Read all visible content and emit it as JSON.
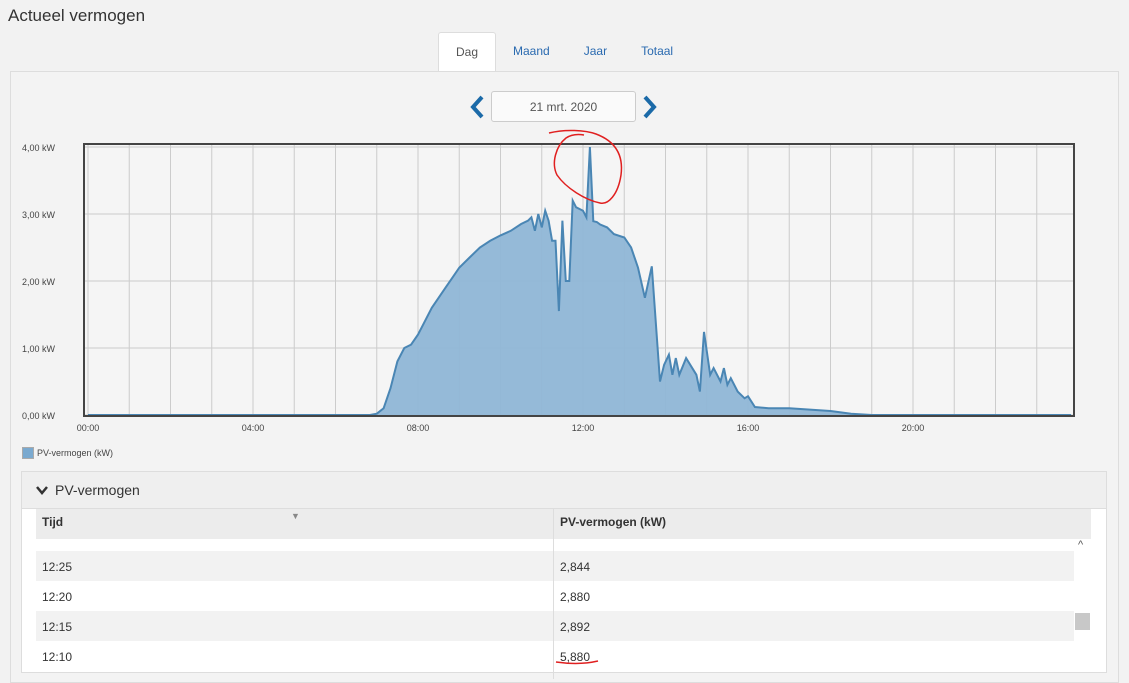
{
  "page": {
    "title": "Actueel vermogen"
  },
  "tabs": [
    {
      "label": "Dag",
      "active": true
    },
    {
      "label": "Maand"
    },
    {
      "label": "Jaar"
    },
    {
      "label": "Totaal"
    }
  ],
  "date_nav": {
    "date": "21 mrt. 2020",
    "prev_icon": "chevron-left-icon",
    "next_icon": "chevron-right-icon"
  },
  "colors": {
    "accent": "#1b6aa8",
    "area_fill": "#8fb6d6",
    "line": "#4a86b4",
    "annotation": "#e02020"
  },
  "chart_data": {
    "type": "area",
    "ylim": [
      0,
      4
    ],
    "y_ticks": [
      "0,00 kW",
      "1,00 kW",
      "2,00 kW",
      "3,00 kW",
      "4,00 kW"
    ],
    "x_ticks": [
      "00:00",
      "04:00",
      "08:00",
      "12:00",
      "16:00",
      "20:00"
    ],
    "grid": true,
    "legend": "bottom-left",
    "series": [
      {
        "name": "PV-vermogen (kW)",
        "points": [
          [
            "00:00",
            0
          ],
          [
            "06:50",
            0
          ],
          [
            "07:00",
            0.02
          ],
          [
            "07:10",
            0.1
          ],
          [
            "07:20",
            0.4
          ],
          [
            "07:30",
            0.8
          ],
          [
            "07:40",
            1.0
          ],
          [
            "07:50",
            1.05
          ],
          [
            "08:00",
            1.2
          ],
          [
            "08:10",
            1.4
          ],
          [
            "08:20",
            1.6
          ],
          [
            "08:30",
            1.75
          ],
          [
            "08:40",
            1.9
          ],
          [
            "08:50",
            2.05
          ],
          [
            "09:00",
            2.2
          ],
          [
            "09:15",
            2.35
          ],
          [
            "09:30",
            2.5
          ],
          [
            "09:45",
            2.6
          ],
          [
            "10:00",
            2.68
          ],
          [
            "10:15",
            2.75
          ],
          [
            "10:30",
            2.85
          ],
          [
            "10:40",
            2.9
          ],
          [
            "10:45",
            2.95
          ],
          [
            "10:50",
            2.75
          ],
          [
            "10:55",
            3.0
          ],
          [
            "11:00",
            2.8
          ],
          [
            "11:05",
            3.05
          ],
          [
            "11:10",
            2.9
          ],
          [
            "11:15",
            2.6
          ],
          [
            "11:20",
            2.6
          ],
          [
            "11:25",
            1.55
          ],
          [
            "11:30",
            2.9
          ],
          [
            "11:35",
            2.0
          ],
          [
            "11:40",
            2.0
          ],
          [
            "11:45",
            3.2
          ],
          [
            "11:50",
            3.1
          ],
          [
            "12:00",
            3.05
          ],
          [
            "12:05",
            2.95
          ],
          [
            "12:10",
            5.88
          ],
          [
            "12:15",
            2.892
          ],
          [
            "12:20",
            2.88
          ],
          [
            "12:25",
            2.844
          ],
          [
            "12:35",
            2.8
          ],
          [
            "12:45",
            2.7
          ],
          [
            "13:00",
            2.65
          ],
          [
            "13:10",
            2.5
          ],
          [
            "13:20",
            2.2
          ],
          [
            "13:30",
            1.75
          ],
          [
            "13:40",
            2.22
          ],
          [
            "13:52",
            0.5
          ],
          [
            "13:58",
            0.75
          ],
          [
            "14:05",
            0.9
          ],
          [
            "14:10",
            0.6
          ],
          [
            "14:15",
            0.85
          ],
          [
            "14:20",
            0.6
          ],
          [
            "14:30",
            0.85
          ],
          [
            "14:45",
            0.6
          ],
          [
            "14:50",
            0.35
          ],
          [
            "14:56",
            1.24
          ],
          [
            "15:05",
            0.6
          ],
          [
            "15:10",
            0.7
          ],
          [
            "15:20",
            0.5
          ],
          [
            "15:25",
            0.7
          ],
          [
            "15:30",
            0.45
          ],
          [
            "15:35",
            0.55
          ],
          [
            "15:45",
            0.35
          ],
          [
            "15:55",
            0.25
          ],
          [
            "16:00",
            0.28
          ],
          [
            "16:10",
            0.12
          ],
          [
            "16:30",
            0.1
          ],
          [
            "17:00",
            0.1
          ],
          [
            "17:30",
            0.08
          ],
          [
            "18:00",
            0.06
          ],
          [
            "18:30",
            0.02
          ],
          [
            "19:00",
            0
          ],
          [
            "23:50",
            0
          ]
        ]
      }
    ]
  },
  "table": {
    "section_title": "PV-vermogen",
    "columns": [
      "Tijd",
      "PV-vermogen (kW)"
    ],
    "rows": [
      [
        "12:25",
        "2,844"
      ],
      [
        "12:20",
        "2,880"
      ],
      [
        "12:15",
        "2,892"
      ],
      [
        "12:10",
        "5,880"
      ]
    ]
  }
}
